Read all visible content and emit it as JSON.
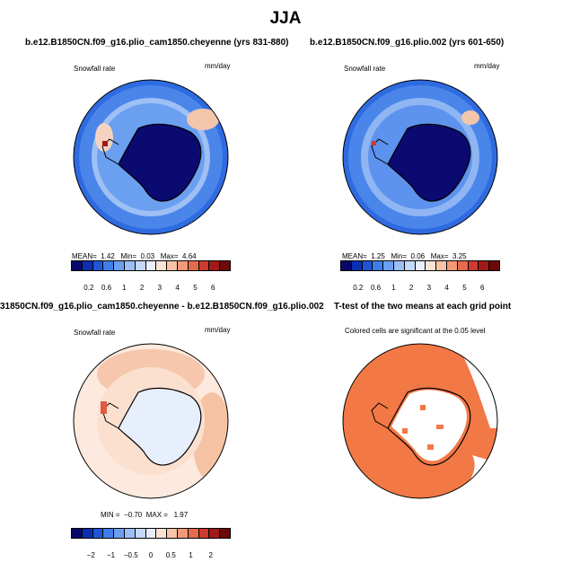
{
  "page_title": "JJA",
  "panels": [
    {
      "title": "b.e12.B1850CN.f09_g16.plio_cam1850.cheyenne (yrs 831-880)",
      "variable": "Snowfall rate",
      "units": "mm/day",
      "stats": {
        "mean_label": "MEAN=",
        "mean": "1.42",
        "min_label": "Min=",
        "min": "0.03",
        "max_label": "Max=",
        "max": "4.64"
      },
      "colorbar_ticks": [
        "0.2",
        "0.6",
        "1",
        "2",
        "3",
        "4",
        "5",
        "6"
      ]
    },
    {
      "title": "b.e12.B1850CN.f09_g16.plio.002 (yrs 601-650)",
      "variable": "Snowfall rate",
      "units": "mm/day",
      "stats": {
        "mean_label": "MEAN=",
        "mean": "1.25",
        "min_label": "Min=",
        "min": "0.06",
        "max_label": "Max=",
        "max": "3.25"
      },
      "colorbar_ticks": [
        "0.2",
        "0.6",
        "1",
        "2",
        "3",
        "4",
        "5",
        "6"
      ]
    },
    {
      "title": "31850CN.f09_g16.plio_cam1850.cheyenne - b.e12.B1850CN.f09_g16.plio.002",
      "variable": "Snowfall rate",
      "units": "mm/day",
      "stats": {
        "min_label": "MIN =",
        "min": "−0.70",
        "max_label": "MAX =",
        "max": "1.97"
      },
      "colorbar_ticks": [
        "−2",
        "−1",
        "−0.5",
        "0",
        "0.5",
        "1",
        "2"
      ]
    },
    {
      "title": "T-test of the two means at each grid point",
      "note": "Colored cells are significant at the 0.05 level"
    }
  ],
  "colors": {
    "abs_scale": [
      "#08086b",
      "#0b2fb0",
      "#1f55d8",
      "#3f7ee8",
      "#6d9ff0",
      "#9bbff5",
      "#c4d8fa",
      "#e8eefc",
      "#fbe3d3",
      "#f8c3a6",
      "#f29a77",
      "#e46b4c",
      "#cc3b2e",
      "#a11a17",
      "#6e0909"
    ],
    "diff_scale": [
      "#08086b",
      "#0b2fb0",
      "#1f55d8",
      "#3f7ee8",
      "#6d9ff0",
      "#9bbff5",
      "#c4d8fa",
      "#e6ecfb",
      "#fbe3d3",
      "#f8c3a6",
      "#f29a77",
      "#e46b4c",
      "#cc3b2e",
      "#a11a17",
      "#6e0909"
    ],
    "sig_fill": "#f27846"
  }
}
